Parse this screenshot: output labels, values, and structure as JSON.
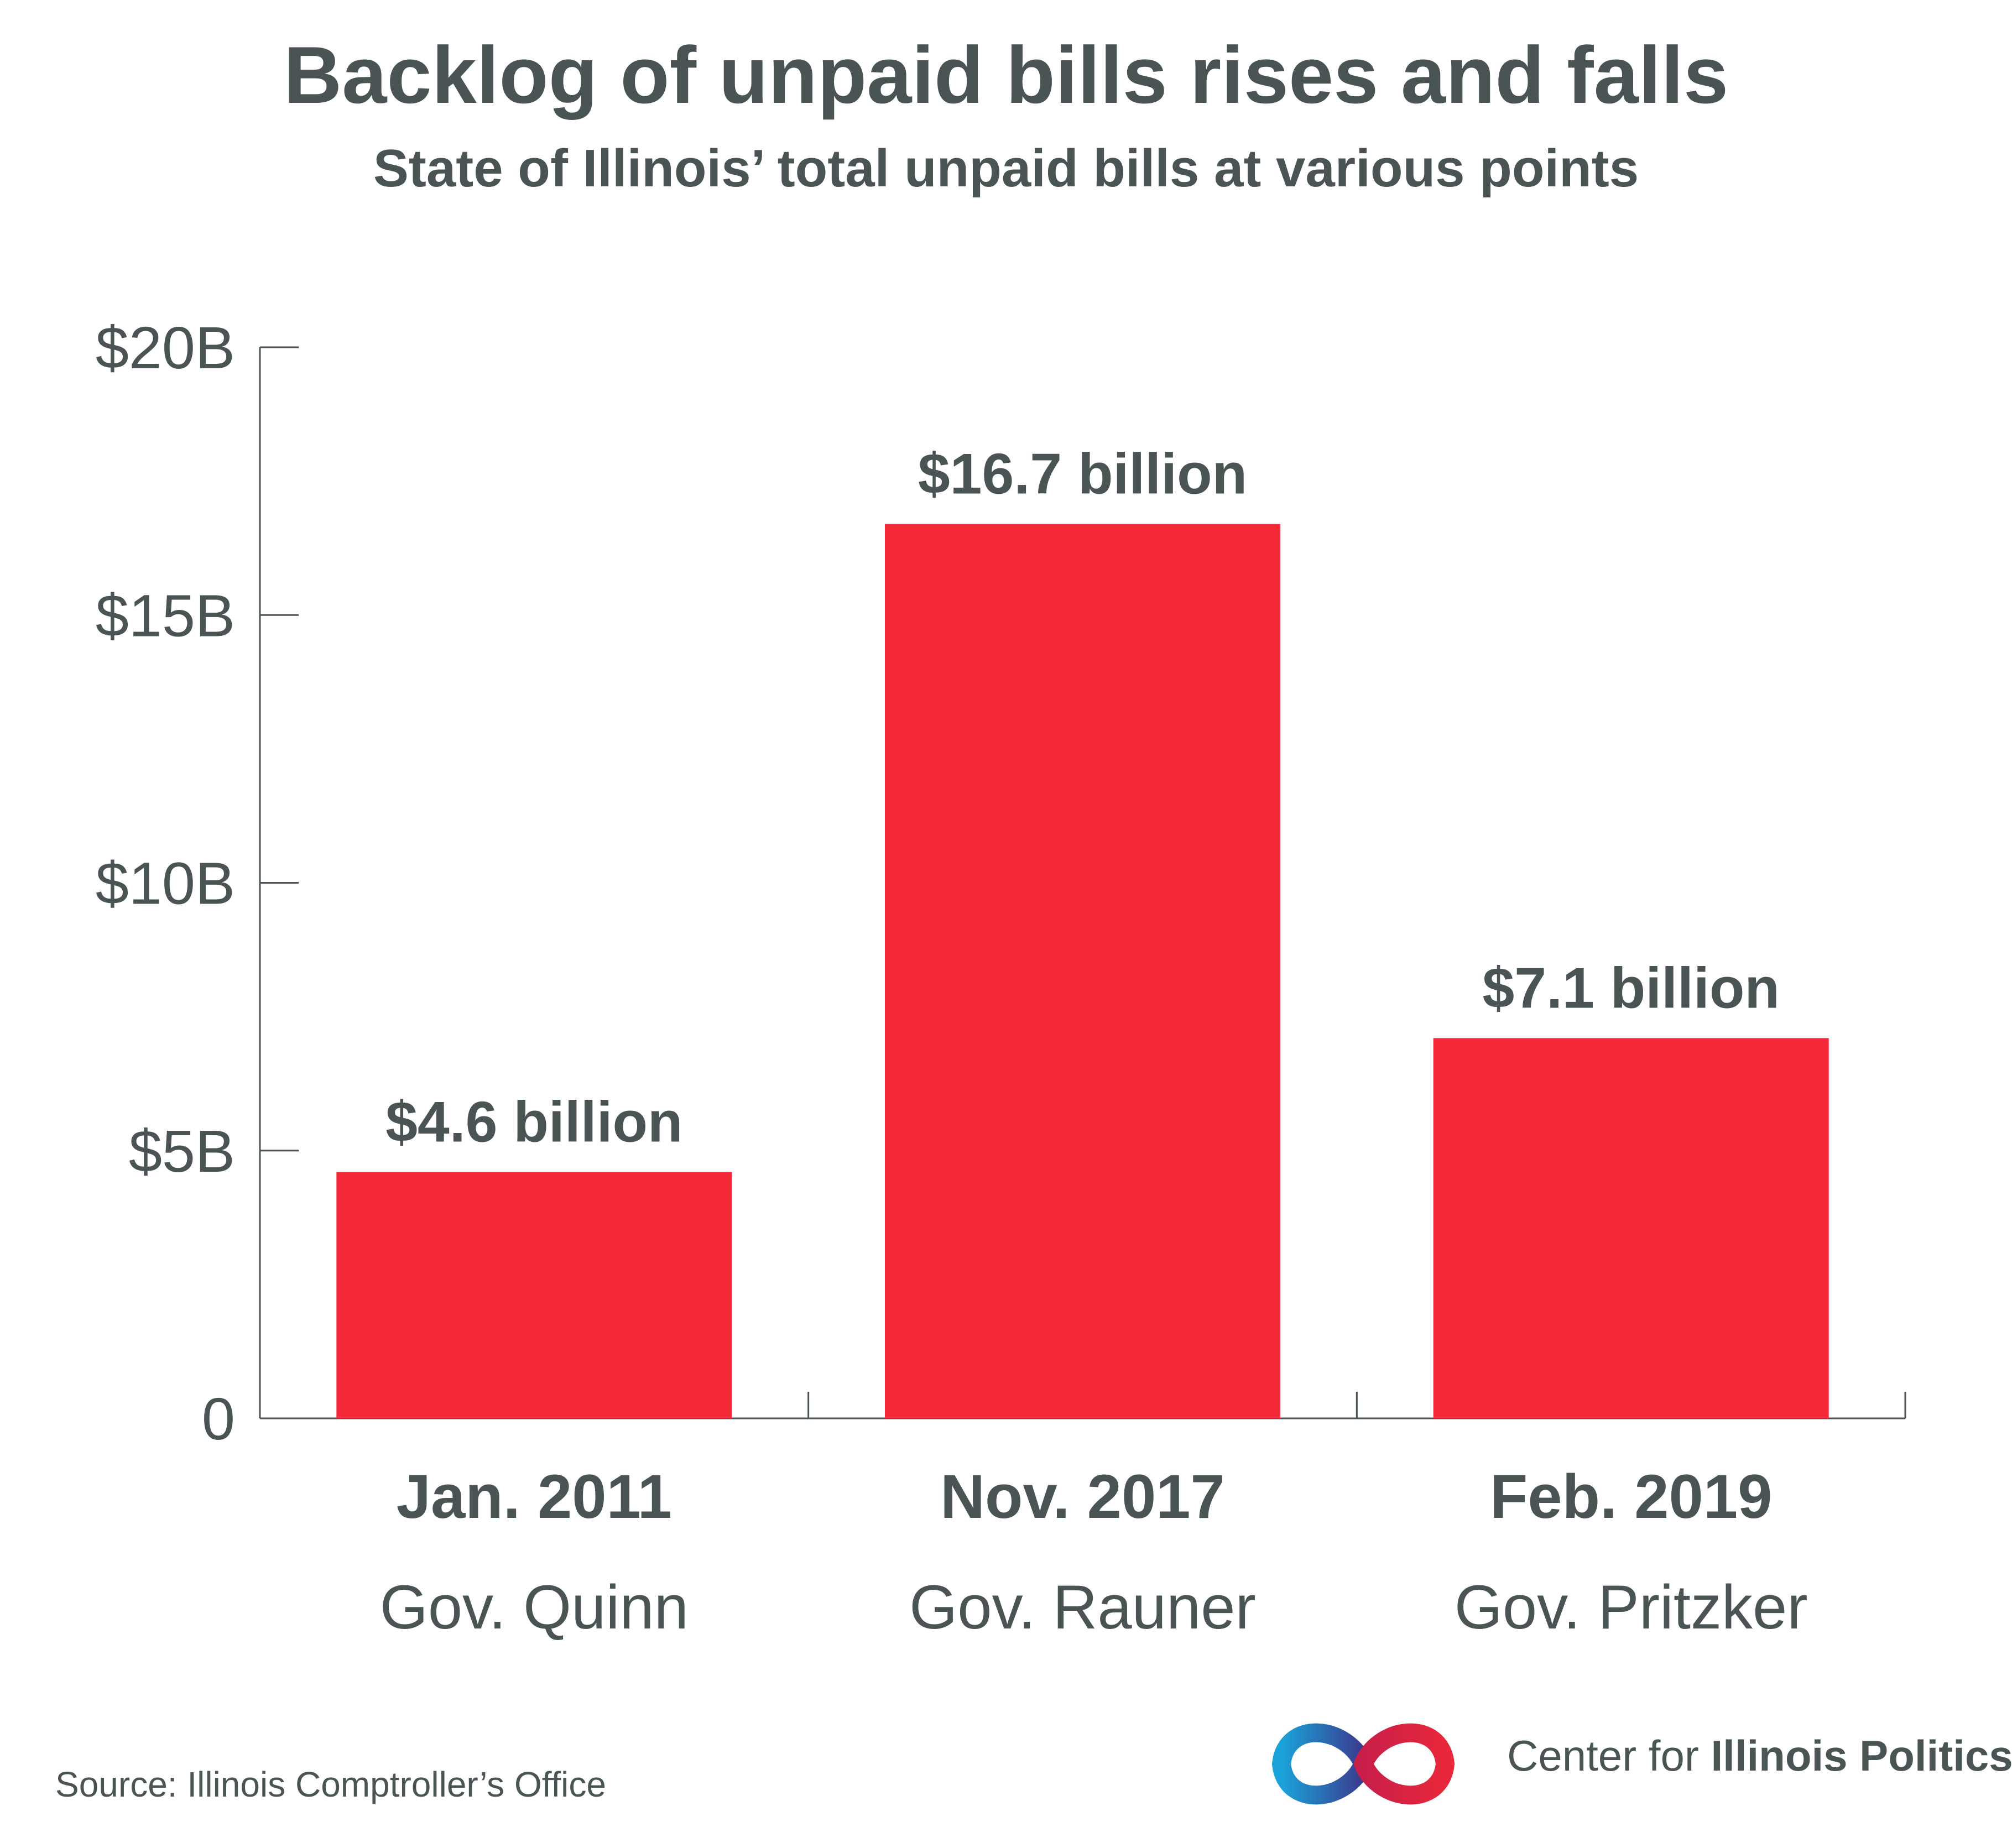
{
  "title": "Backlog of unpaid bills rises and falls",
  "subtitle": "State of Illinois’ total unpaid bills at various points",
  "source": "Source: Illinois Comptroller’s Office",
  "brand": {
    "name_prefix": "Center for ",
    "name_bold": "Illinois Politics",
    "logo_icon": "infinity-loop-icon",
    "logo_colors": [
      "#1aa3d9",
      "#3b3a8f",
      "#c81e4a",
      "#e8283a"
    ]
  },
  "colors": {
    "bar": "#f22738",
    "text": "#4a5455",
    "axis": "#4a5455"
  },
  "chart_data": {
    "type": "bar",
    "title": "Backlog of unpaid bills rises and falls",
    "subtitle": "State of Illinois’ total unpaid bills at various points",
    "xlabel": "",
    "ylabel": "",
    "categories": [
      "Jan. 2011",
      "Nov. 2017",
      "Feb. 2019"
    ],
    "category_sublabels": [
      "Gov. Quinn",
      "Gov. Rauner",
      "Gov. Pritzker"
    ],
    "values": [
      4.6,
      16.7,
      7.1
    ],
    "value_labels": [
      "$4.6 billion",
      "$16.7 billion",
      "$7.1 billion"
    ],
    "ylim": [
      0,
      20
    ],
    "yticks": [
      0,
      5,
      10,
      15,
      20
    ],
    "ytick_labels": [
      "0",
      "$5B",
      "$10B",
      "$15B",
      "$20B"
    ],
    "grid": false,
    "legend": "none"
  }
}
